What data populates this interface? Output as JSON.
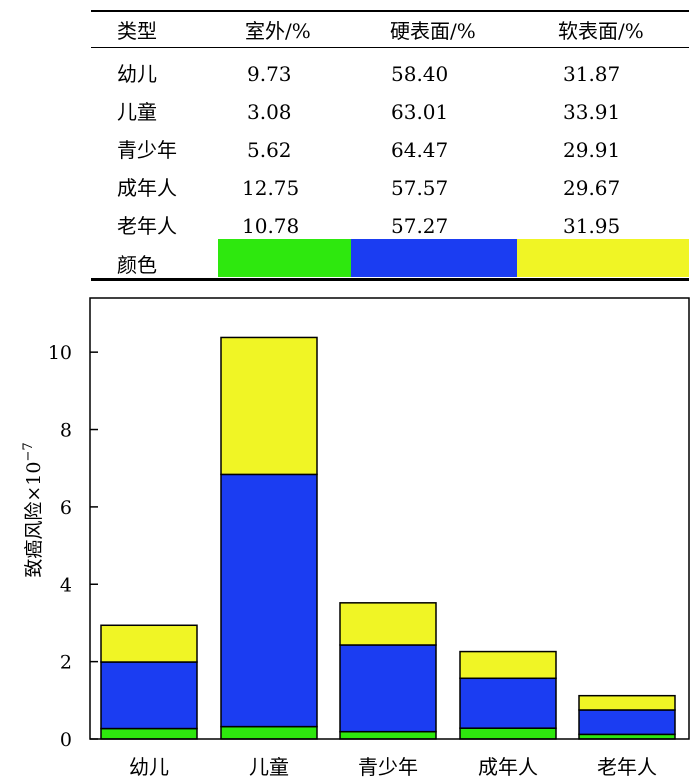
{
  "table": {
    "headers": [
      "类型",
      "室外/%",
      "硬表面/%",
      "软表面/%"
    ],
    "rows": [
      {
        "type": "幼儿",
        "outdoor": "9.73",
        "hard": "58.40",
        "soft": "31.87"
      },
      {
        "type": "儿童",
        "outdoor": "3.08",
        "hard": "63.01",
        "soft": "33.91"
      },
      {
        "type": "青少年",
        "outdoor": "5.62",
        "hard": "64.47",
        "soft": "29.91"
      },
      {
        "type": "成年人",
        "outdoor": "12.75",
        "hard": "57.57",
        "soft": "29.67"
      },
      {
        "type": "老年人",
        "outdoor": "10.78",
        "hard": "57.27",
        "soft": "31.95"
      }
    ],
    "color_row_label": "颜色",
    "colors": {
      "outdoor": "#2ee80e",
      "hard": "#1b3df2",
      "soft": "#f0f525"
    }
  },
  "chart_data": {
    "type": "bar",
    "stacked": true,
    "categories": [
      "幼儿",
      "儿童",
      "青少年",
      "成年人",
      "老年人"
    ],
    "series": [
      {
        "name": "室外/%",
        "color": "#2ee80e",
        "values": [
          0.27,
          0.32,
          0.19,
          0.28,
          0.12
        ]
      },
      {
        "name": "硬表面/%",
        "color": "#1b3df2",
        "values": [
          1.72,
          6.52,
          2.24,
          1.29,
          0.63
        ]
      },
      {
        "name": "软表面/%",
        "color": "#f0f525",
        "values": [
          0.95,
          3.54,
          1.09,
          0.69,
          0.37
        ]
      }
    ],
    "ylabel": "致癌风险×10",
    "ylabel_exponent": "−7",
    "ylim": [
      0,
      11.4
    ],
    "yticks": [
      0,
      2,
      4,
      6,
      8,
      10
    ],
    "grid": false
  }
}
